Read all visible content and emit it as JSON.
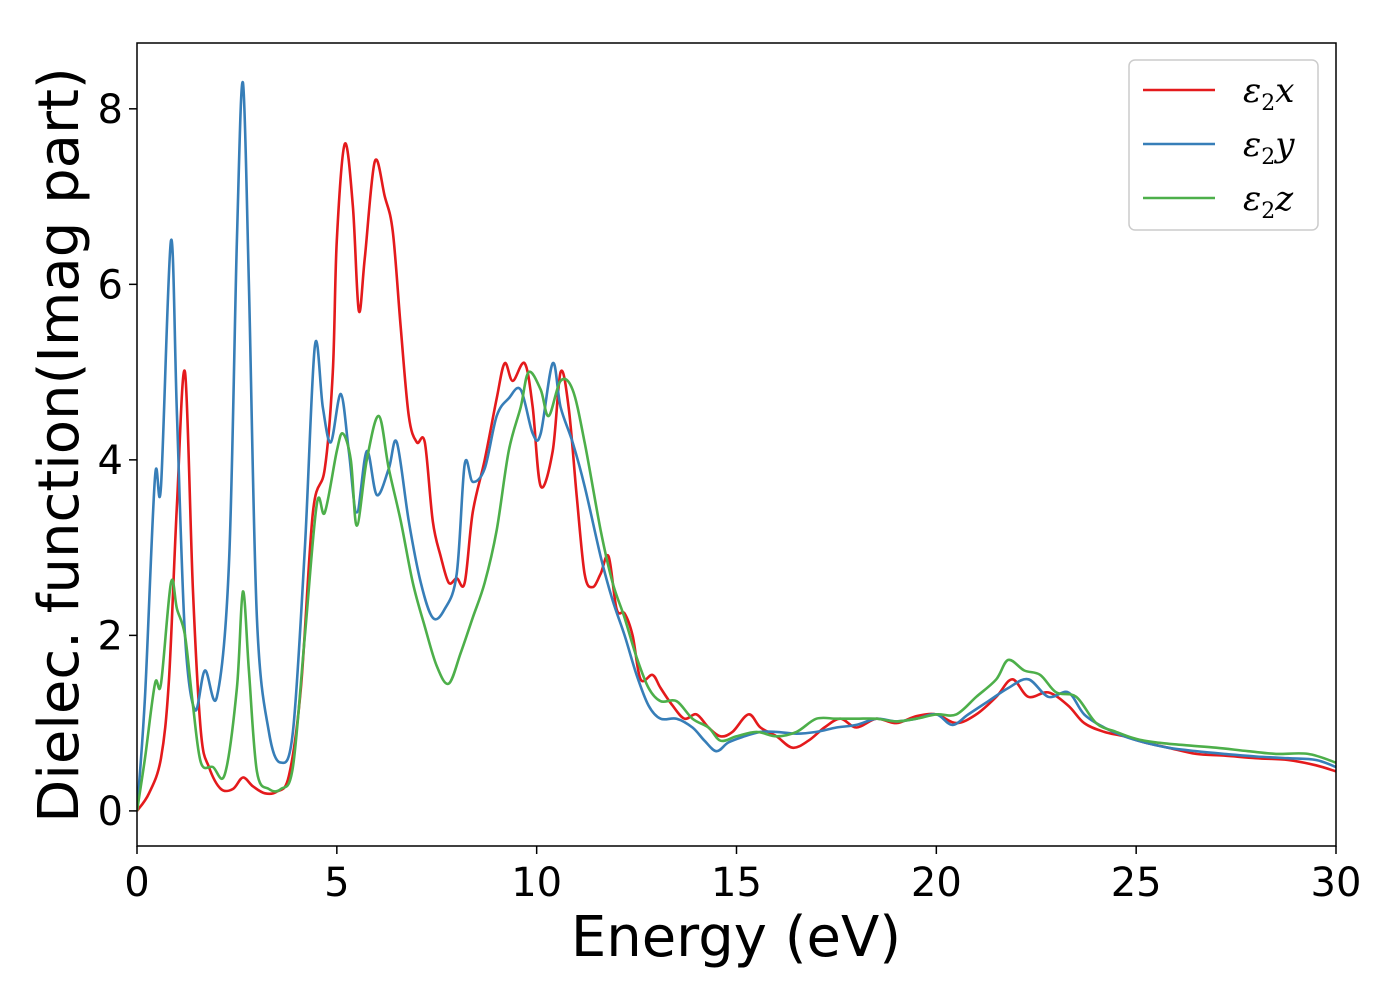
{
  "chart_data": {
    "type": "line",
    "xlabel": "Energy (eV)",
    "ylabel": "Dielec. function(Imag part)",
    "xlim": [
      0,
      30
    ],
    "ylim": [
      -0.4,
      8.75
    ],
    "xticks": [
      0,
      5,
      10,
      15,
      20,
      25,
      30
    ],
    "yticks": [
      0,
      2,
      4,
      6,
      8
    ],
    "grid": false,
    "legend_position": "top-right",
    "series": [
      {
        "name": "ε2x",
        "legend_base": "ε",
        "legend_sub": "2",
        "legend_suffix": "x",
        "color": "#e41a1c",
        "points": [
          [
            0,
            0
          ],
          [
            0.3,
            0.2
          ],
          [
            0.6,
            0.6
          ],
          [
            0.8,
            1.5
          ],
          [
            1.0,
            3.5
          ],
          [
            1.2,
            5.0
          ],
          [
            1.4,
            2.5
          ],
          [
            1.6,
            0.9
          ],
          [
            1.8,
            0.5
          ],
          [
            2.1,
            0.25
          ],
          [
            2.4,
            0.25
          ],
          [
            2.65,
            0.38
          ],
          [
            2.9,
            0.28
          ],
          [
            3.2,
            0.2
          ],
          [
            3.5,
            0.22
          ],
          [
            3.8,
            0.4
          ],
          [
            4.1,
            1.4
          ],
          [
            4.4,
            3.4
          ],
          [
            4.7,
            3.9
          ],
          [
            4.9,
            5.0
          ],
          [
            5.0,
            6.5
          ],
          [
            5.2,
            7.6
          ],
          [
            5.4,
            6.9
          ],
          [
            5.55,
            5.7
          ],
          [
            5.7,
            6.3
          ],
          [
            5.95,
            7.4
          ],
          [
            6.2,
            7.0
          ],
          [
            6.4,
            6.6
          ],
          [
            6.6,
            5.5
          ],
          [
            6.8,
            4.5
          ],
          [
            7.0,
            4.2
          ],
          [
            7.2,
            4.2
          ],
          [
            7.4,
            3.3
          ],
          [
            7.6,
            2.9
          ],
          [
            7.8,
            2.6
          ],
          [
            8.0,
            2.65
          ],
          [
            8.2,
            2.6
          ],
          [
            8.4,
            3.4
          ],
          [
            8.7,
            4.0
          ],
          [
            9.0,
            4.7
          ],
          [
            9.2,
            5.1
          ],
          [
            9.4,
            4.9
          ],
          [
            9.7,
            5.1
          ],
          [
            9.9,
            4.6
          ],
          [
            10.1,
            3.7
          ],
          [
            10.4,
            4.1
          ],
          [
            10.6,
            5.0
          ],
          [
            10.8,
            4.6
          ],
          [
            11.0,
            3.6
          ],
          [
            11.2,
            2.7
          ],
          [
            11.4,
            2.55
          ],
          [
            11.6,
            2.7
          ],
          [
            11.8,
            2.9
          ],
          [
            12.0,
            2.3
          ],
          [
            12.2,
            2.25
          ],
          [
            12.4,
            2.0
          ],
          [
            12.6,
            1.5
          ],
          [
            12.9,
            1.55
          ],
          [
            13.1,
            1.4
          ],
          [
            13.4,
            1.2
          ],
          [
            13.7,
            1.05
          ],
          [
            14.0,
            1.1
          ],
          [
            14.3,
            0.95
          ],
          [
            14.6,
            0.85
          ],
          [
            14.9,
            0.9
          ],
          [
            15.3,
            1.1
          ],
          [
            15.6,
            0.95
          ],
          [
            16.0,
            0.85
          ],
          [
            16.4,
            0.72
          ],
          [
            16.8,
            0.8
          ],
          [
            17.2,
            0.95
          ],
          [
            17.6,
            1.05
          ],
          [
            18.0,
            0.95
          ],
          [
            18.5,
            1.05
          ],
          [
            19.0,
            1.0
          ],
          [
            19.5,
            1.08
          ],
          [
            20.0,
            1.1
          ],
          [
            20.5,
            1.0
          ],
          [
            21.0,
            1.1
          ],
          [
            21.5,
            1.3
          ],
          [
            21.9,
            1.5
          ],
          [
            22.3,
            1.3
          ],
          [
            22.8,
            1.35
          ],
          [
            23.3,
            1.2
          ],
          [
            23.7,
            1.0
          ],
          [
            24.2,
            0.9
          ],
          [
            24.7,
            0.85
          ],
          [
            25.2,
            0.78
          ],
          [
            25.8,
            0.72
          ],
          [
            26.5,
            0.65
          ],
          [
            27.2,
            0.63
          ],
          [
            28.0,
            0.6
          ],
          [
            28.8,
            0.58
          ],
          [
            29.5,
            0.52
          ],
          [
            30,
            0.45
          ]
        ]
      },
      {
        "name": "ε2y",
        "legend_base": "ε",
        "legend_sub": "2",
        "legend_suffix": "y",
        "color": "#377eb8",
        "points": [
          [
            0,
            0
          ],
          [
            0.2,
            1.3
          ],
          [
            0.45,
            3.8
          ],
          [
            0.6,
            3.7
          ],
          [
            0.85,
            6.5
          ],
          [
            1.0,
            4.5
          ],
          [
            1.2,
            2.0
          ],
          [
            1.45,
            1.15
          ],
          [
            1.7,
            1.6
          ],
          [
            2.0,
            1.3
          ],
          [
            2.3,
            2.8
          ],
          [
            2.5,
            6.5
          ],
          [
            2.65,
            8.3
          ],
          [
            2.8,
            6.0
          ],
          [
            3.0,
            2.2
          ],
          [
            3.3,
            0.9
          ],
          [
            3.6,
            0.55
          ],
          [
            3.9,
            0.9
          ],
          [
            4.2,
            3.0
          ],
          [
            4.45,
            5.3
          ],
          [
            4.65,
            4.6
          ],
          [
            4.85,
            4.2
          ],
          [
            5.1,
            4.75
          ],
          [
            5.3,
            4.1
          ],
          [
            5.5,
            3.4
          ],
          [
            5.75,
            4.1
          ],
          [
            6.0,
            3.6
          ],
          [
            6.3,
            3.9
          ],
          [
            6.5,
            4.2
          ],
          [
            6.8,
            3.3
          ],
          [
            7.1,
            2.6
          ],
          [
            7.4,
            2.2
          ],
          [
            7.7,
            2.3
          ],
          [
            8.0,
            2.7
          ],
          [
            8.2,
            3.95
          ],
          [
            8.4,
            3.75
          ],
          [
            8.7,
            3.9
          ],
          [
            9.0,
            4.5
          ],
          [
            9.3,
            4.7
          ],
          [
            9.6,
            4.8
          ],
          [
            9.9,
            4.3
          ],
          [
            10.1,
            4.3
          ],
          [
            10.4,
            5.1
          ],
          [
            10.6,
            4.6
          ],
          [
            10.9,
            4.2
          ],
          [
            11.2,
            3.7
          ],
          [
            11.6,
            2.9
          ],
          [
            11.9,
            2.4
          ],
          [
            12.2,
            2.0
          ],
          [
            12.5,
            1.55
          ],
          [
            12.8,
            1.2
          ],
          [
            13.1,
            1.05
          ],
          [
            13.5,
            1.05
          ],
          [
            13.9,
            0.95
          ],
          [
            14.2,
            0.8
          ],
          [
            14.5,
            0.68
          ],
          [
            14.8,
            0.78
          ],
          [
            15.2,
            0.85
          ],
          [
            15.6,
            0.9
          ],
          [
            16.0,
            0.9
          ],
          [
            16.5,
            0.88
          ],
          [
            17.0,
            0.9
          ],
          [
            17.5,
            0.95
          ],
          [
            18.0,
            0.98
          ],
          [
            18.5,
            1.05
          ],
          [
            19.0,
            1.02
          ],
          [
            19.5,
            1.05
          ],
          [
            20.0,
            1.1
          ],
          [
            20.4,
            0.98
          ],
          [
            20.8,
            1.1
          ],
          [
            21.3,
            1.25
          ],
          [
            21.8,
            1.4
          ],
          [
            22.3,
            1.5
          ],
          [
            22.8,
            1.3
          ],
          [
            23.3,
            1.35
          ],
          [
            23.7,
            1.1
          ],
          [
            24.2,
            0.95
          ],
          [
            24.7,
            0.85
          ],
          [
            25.2,
            0.78
          ],
          [
            25.8,
            0.72
          ],
          [
            26.5,
            0.68
          ],
          [
            27.2,
            0.65
          ],
          [
            28.0,
            0.62
          ],
          [
            28.8,
            0.6
          ],
          [
            29.5,
            0.58
          ],
          [
            30,
            0.5
          ]
        ]
      },
      {
        "name": "ε2z",
        "legend_base": "ε",
        "legend_sub": "2",
        "legend_suffix": "z",
        "color": "#4daf4a",
        "points": [
          [
            0,
            0
          ],
          [
            0.2,
            0.6
          ],
          [
            0.45,
            1.45
          ],
          [
            0.6,
            1.45
          ],
          [
            0.85,
            2.6
          ],
          [
            1.0,
            2.3
          ],
          [
            1.2,
            2.0
          ],
          [
            1.4,
            1.2
          ],
          [
            1.6,
            0.55
          ],
          [
            1.9,
            0.5
          ],
          [
            2.2,
            0.42
          ],
          [
            2.5,
            1.4
          ],
          [
            2.65,
            2.5
          ],
          [
            2.8,
            1.6
          ],
          [
            3.0,
            0.45
          ],
          [
            3.3,
            0.25
          ],
          [
            3.6,
            0.25
          ],
          [
            3.9,
            0.5
          ],
          [
            4.2,
            2.0
          ],
          [
            4.5,
            3.5
          ],
          [
            4.7,
            3.4
          ],
          [
            5.0,
            4.1
          ],
          [
            5.15,
            4.3
          ],
          [
            5.35,
            4.0
          ],
          [
            5.5,
            3.25
          ],
          [
            5.75,
            4.0
          ],
          [
            6.05,
            4.5
          ],
          [
            6.3,
            3.9
          ],
          [
            6.6,
            3.3
          ],
          [
            6.9,
            2.6
          ],
          [
            7.2,
            2.1
          ],
          [
            7.5,
            1.65
          ],
          [
            7.8,
            1.45
          ],
          [
            8.1,
            1.8
          ],
          [
            8.4,
            2.2
          ],
          [
            8.7,
            2.6
          ],
          [
            9.0,
            3.2
          ],
          [
            9.3,
            4.1
          ],
          [
            9.6,
            4.6
          ],
          [
            9.8,
            5.0
          ],
          [
            10.1,
            4.8
          ],
          [
            10.3,
            4.5
          ],
          [
            10.6,
            4.9
          ],
          [
            10.9,
            4.8
          ],
          [
            11.2,
            4.2
          ],
          [
            11.6,
            3.2
          ],
          [
            11.9,
            2.6
          ],
          [
            12.2,
            2.2
          ],
          [
            12.5,
            1.75
          ],
          [
            12.8,
            1.4
          ],
          [
            13.1,
            1.25
          ],
          [
            13.5,
            1.25
          ],
          [
            13.9,
            1.05
          ],
          [
            14.3,
            0.95
          ],
          [
            14.6,
            0.8
          ],
          [
            15.0,
            0.85
          ],
          [
            15.5,
            0.9
          ],
          [
            16.0,
            0.85
          ],
          [
            16.5,
            0.9
          ],
          [
            17.0,
            1.05
          ],
          [
            17.5,
            1.05
          ],
          [
            18.0,
            1.05
          ],
          [
            18.5,
            1.05
          ],
          [
            19.0,
            1.02
          ],
          [
            19.5,
            1.05
          ],
          [
            20.0,
            1.1
          ],
          [
            20.5,
            1.1
          ],
          [
            21.0,
            1.3
          ],
          [
            21.5,
            1.5
          ],
          [
            21.8,
            1.72
          ],
          [
            22.2,
            1.6
          ],
          [
            22.6,
            1.55
          ],
          [
            23.0,
            1.35
          ],
          [
            23.5,
            1.3
          ],
          [
            24.0,
            1.0
          ],
          [
            24.5,
            0.9
          ],
          [
            25.0,
            0.82
          ],
          [
            25.5,
            0.78
          ],
          [
            26.2,
            0.75
          ],
          [
            27.0,
            0.72
          ],
          [
            27.8,
            0.68
          ],
          [
            28.5,
            0.65
          ],
          [
            29.3,
            0.65
          ],
          [
            30,
            0.55
          ]
        ]
      }
    ]
  }
}
